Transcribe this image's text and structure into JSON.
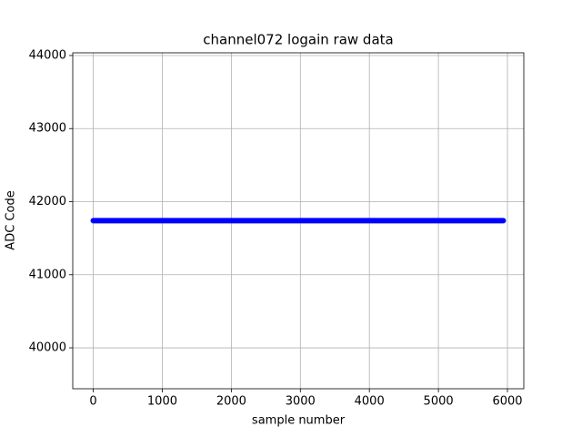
{
  "chart_data": {
    "type": "line",
    "title": "channel072 logain raw data",
    "x_label": "sample number",
    "y_label": "ADC Code",
    "x": [
      0,
      5940
    ],
    "series": [
      {
        "color": "#0000ff",
        "values": [
          41740,
          41740
        ]
      }
    ],
    "xlim": [
      -297,
      6237
    ],
    "xticks": [
      0,
      1000,
      2000,
      3000,
      4000,
      5000,
      6000
    ],
    "ylim": [
      39440,
      44037
    ],
    "yticks": [
      40000,
      41000,
      42000,
      43000,
      44000
    ],
    "grid": true
  }
}
